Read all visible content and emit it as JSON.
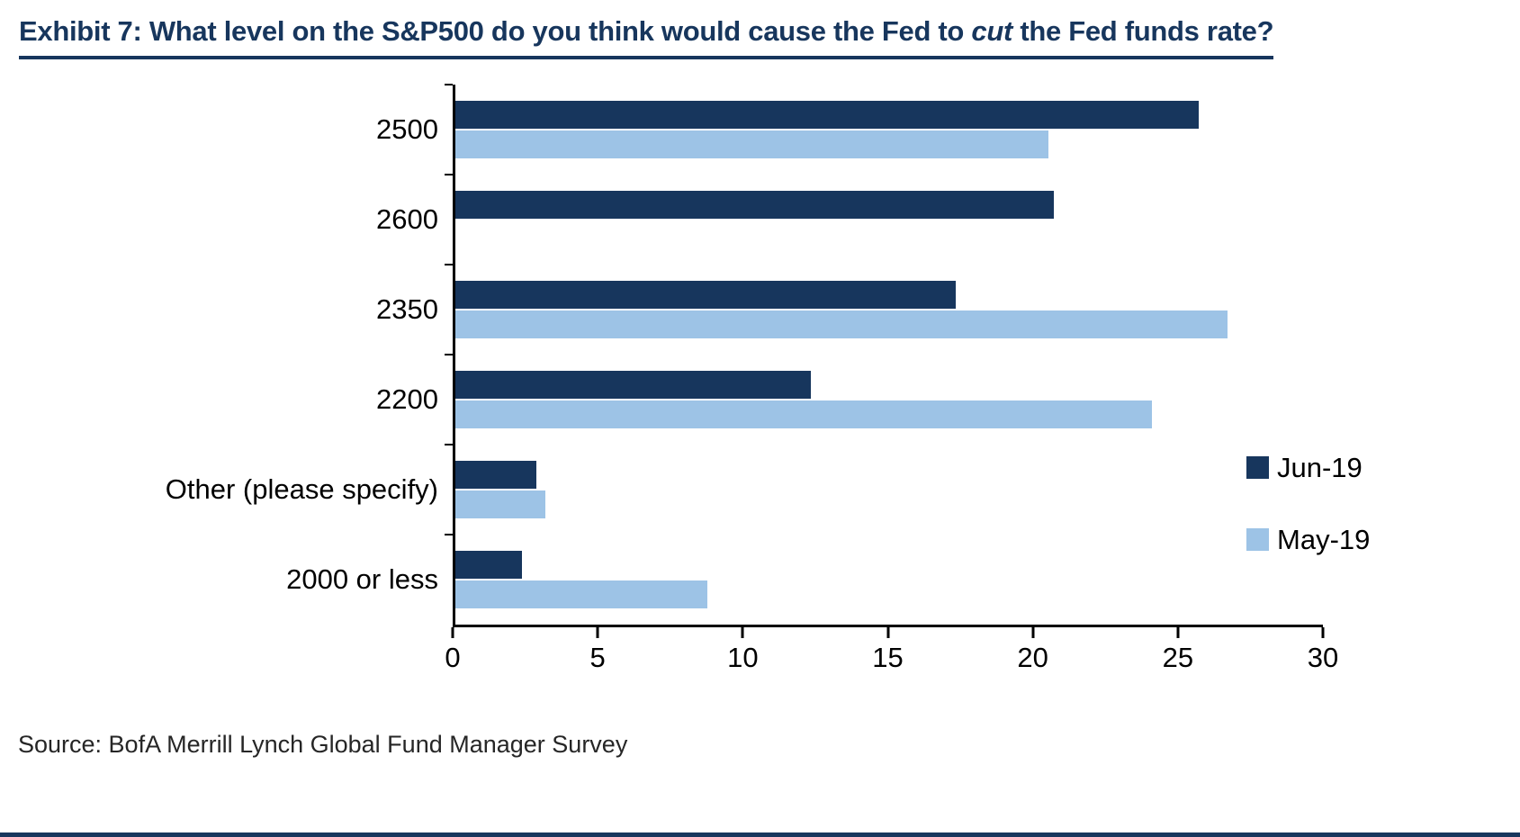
{
  "title": {
    "prefix": "Exhibit 7: What level on the S&P500 do you think would cause the Fed to ",
    "emphasis": "cut",
    "suffix": " the Fed funds rate?"
  },
  "source": "Source: BofA Merrill Lynch Global Fund Manager Survey",
  "colors": {
    "navy": "#17365D",
    "light_blue": "#9DC3E6",
    "axis": "#000000",
    "bottom_rule": "#17365D"
  },
  "chart_data": {
    "type": "bar",
    "orientation": "horizontal",
    "title": "Exhibit 7: What level on the S&P500 do you think would cause the Fed to cut the Fed funds rate?",
    "xlabel": "",
    "ylabel": "",
    "categories": [
      "2500",
      "2600",
      "2350",
      "2200",
      "Other (please specify)",
      "2000 or less"
    ],
    "series": [
      {
        "name": "Jun-19",
        "color": "#17365D",
        "values": [
          25.7,
          20.7,
          17.3,
          12.3,
          2.8,
          2.3
        ]
      },
      {
        "name": "May-19",
        "color": "#9DC3E6",
        "values": [
          20.5,
          0,
          26.7,
          24.1,
          3.1,
          8.7
        ]
      }
    ],
    "xlim": [
      0,
      30
    ],
    "xticks": [
      0,
      5,
      10,
      15,
      20,
      25,
      30
    ],
    "grid": false,
    "legend_position": "right-middle"
  }
}
